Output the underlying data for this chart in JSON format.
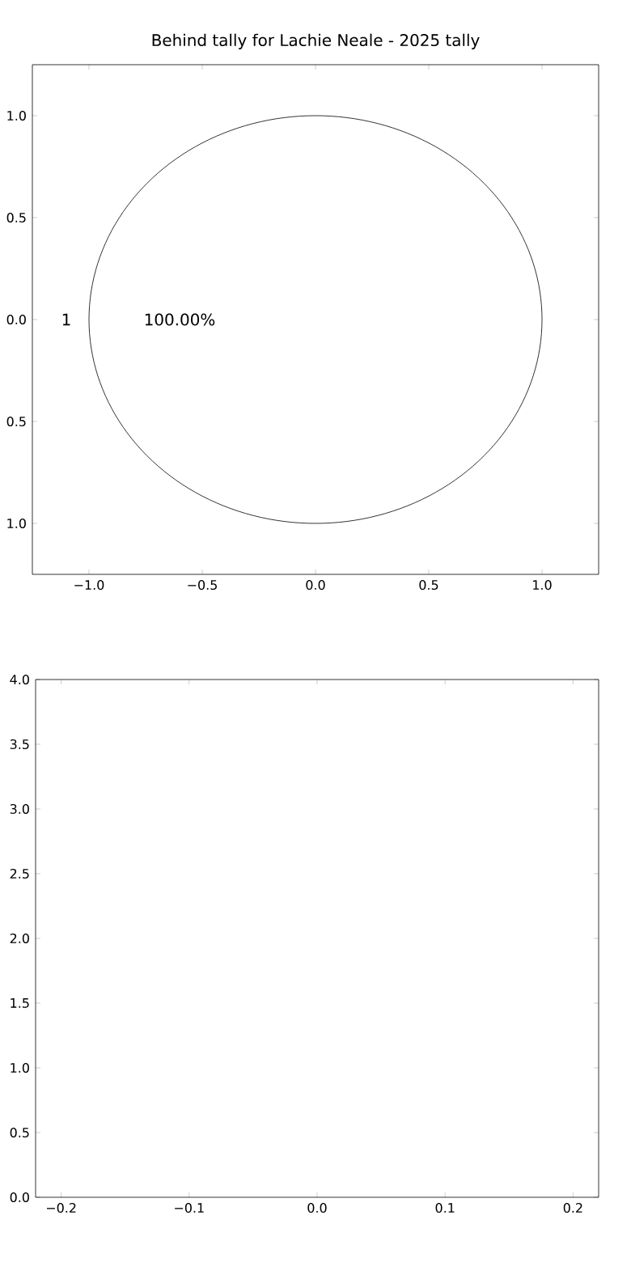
{
  "chart_data": [
    {
      "type": "pie",
      "title": "Behind tally for Lachie Neale - 2025 tally",
      "categories": [
        "1"
      ],
      "values": [
        100
      ],
      "colors": [
        "#ffffff"
      ],
      "value_labels": [
        "100.00%"
      ]
    },
    {
      "type": "bar",
      "xlim": [
        -1.25,
        1.25
      ],
      "ylim": [
        -1.25,
        1.25
      ],
      "xticks": [
        {
          "value": -1,
          "label": "−1.0"
        },
        {
          "value": -0.5,
          "label": "−0.5"
        },
        {
          "value": 0,
          "label": "0.0"
        },
        {
          "value": 0.5,
          "label": "0.5"
        },
        {
          "value": 1,
          "label": "1.0"
        }
      ],
      "yticks": [
        {
          "value": -1,
          "label": "1.0"
        },
        {
          "value": -0.5,
          "label": "0.5"
        },
        {
          "value": 0,
          "label": "0.0"
        },
        {
          "value": 0.5,
          "label": "0.5"
        },
        {
          "value": 1,
          "label": "1.0"
        }
      ]
    },
    {
      "type": "bar",
      "xlim": [
        -0.22,
        0.22
      ],
      "ylim": [
        0,
        4
      ],
      "xticks": [
        {
          "value": -0.2,
          "label": "−0.2"
        },
        {
          "value": -0.1,
          "label": "−0.1"
        },
        {
          "value": 0,
          "label": "0.0"
        },
        {
          "value": 0.1,
          "label": "0.1"
        },
        {
          "value": 0.2,
          "label": "0.2"
        }
      ],
      "yticks": [
        {
          "value": 0,
          "label": "0.0"
        },
        {
          "value": 0.5,
          "label": "0.5"
        },
        {
          "value": 1,
          "label": "1.0"
        },
        {
          "value": 1.5,
          "label": "1.5"
        },
        {
          "value": 2,
          "label": "2.0"
        },
        {
          "value": 2.5,
          "label": "2.5"
        },
        {
          "value": 3,
          "label": "3.0"
        },
        {
          "value": 3.5,
          "label": "3.5"
        },
        {
          "value": 4,
          "label": "4.0"
        }
      ]
    }
  ]
}
